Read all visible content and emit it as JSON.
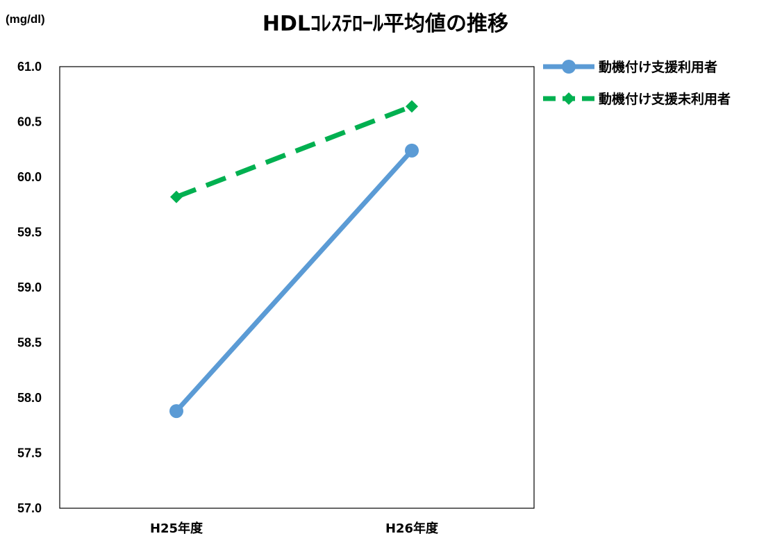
{
  "chart_data": {
    "type": "line",
    "title": "HDLｺﾚｽﾃﾛｰﾙ平均値の推移",
    "unit": "(mg/dl)",
    "xlabel": "",
    "ylabel": "",
    "categories": [
      "H25年度",
      "H26年度"
    ],
    "ylim": [
      57.0,
      61.0
    ],
    "ytick_step": 0.5,
    "ytick_labels": [
      "57.0",
      "57.5",
      "58.0",
      "58.5",
      "59.0",
      "59.5",
      "60.0",
      "60.5",
      "61.0"
    ],
    "grid": false,
    "legend_position": "top-right (outside plot area)",
    "series": [
      {
        "name": "動機付け支援利用者",
        "values": [
          57.88,
          60.24
        ],
        "color": "#5b9bd5",
        "line_style": "solid",
        "marker": "circle"
      },
      {
        "name": "動機付け支援未利用者",
        "values": [
          59.82,
          60.64
        ],
        "color": "#00b050",
        "line_style": "dashed",
        "marker": "diamond"
      }
    ]
  }
}
